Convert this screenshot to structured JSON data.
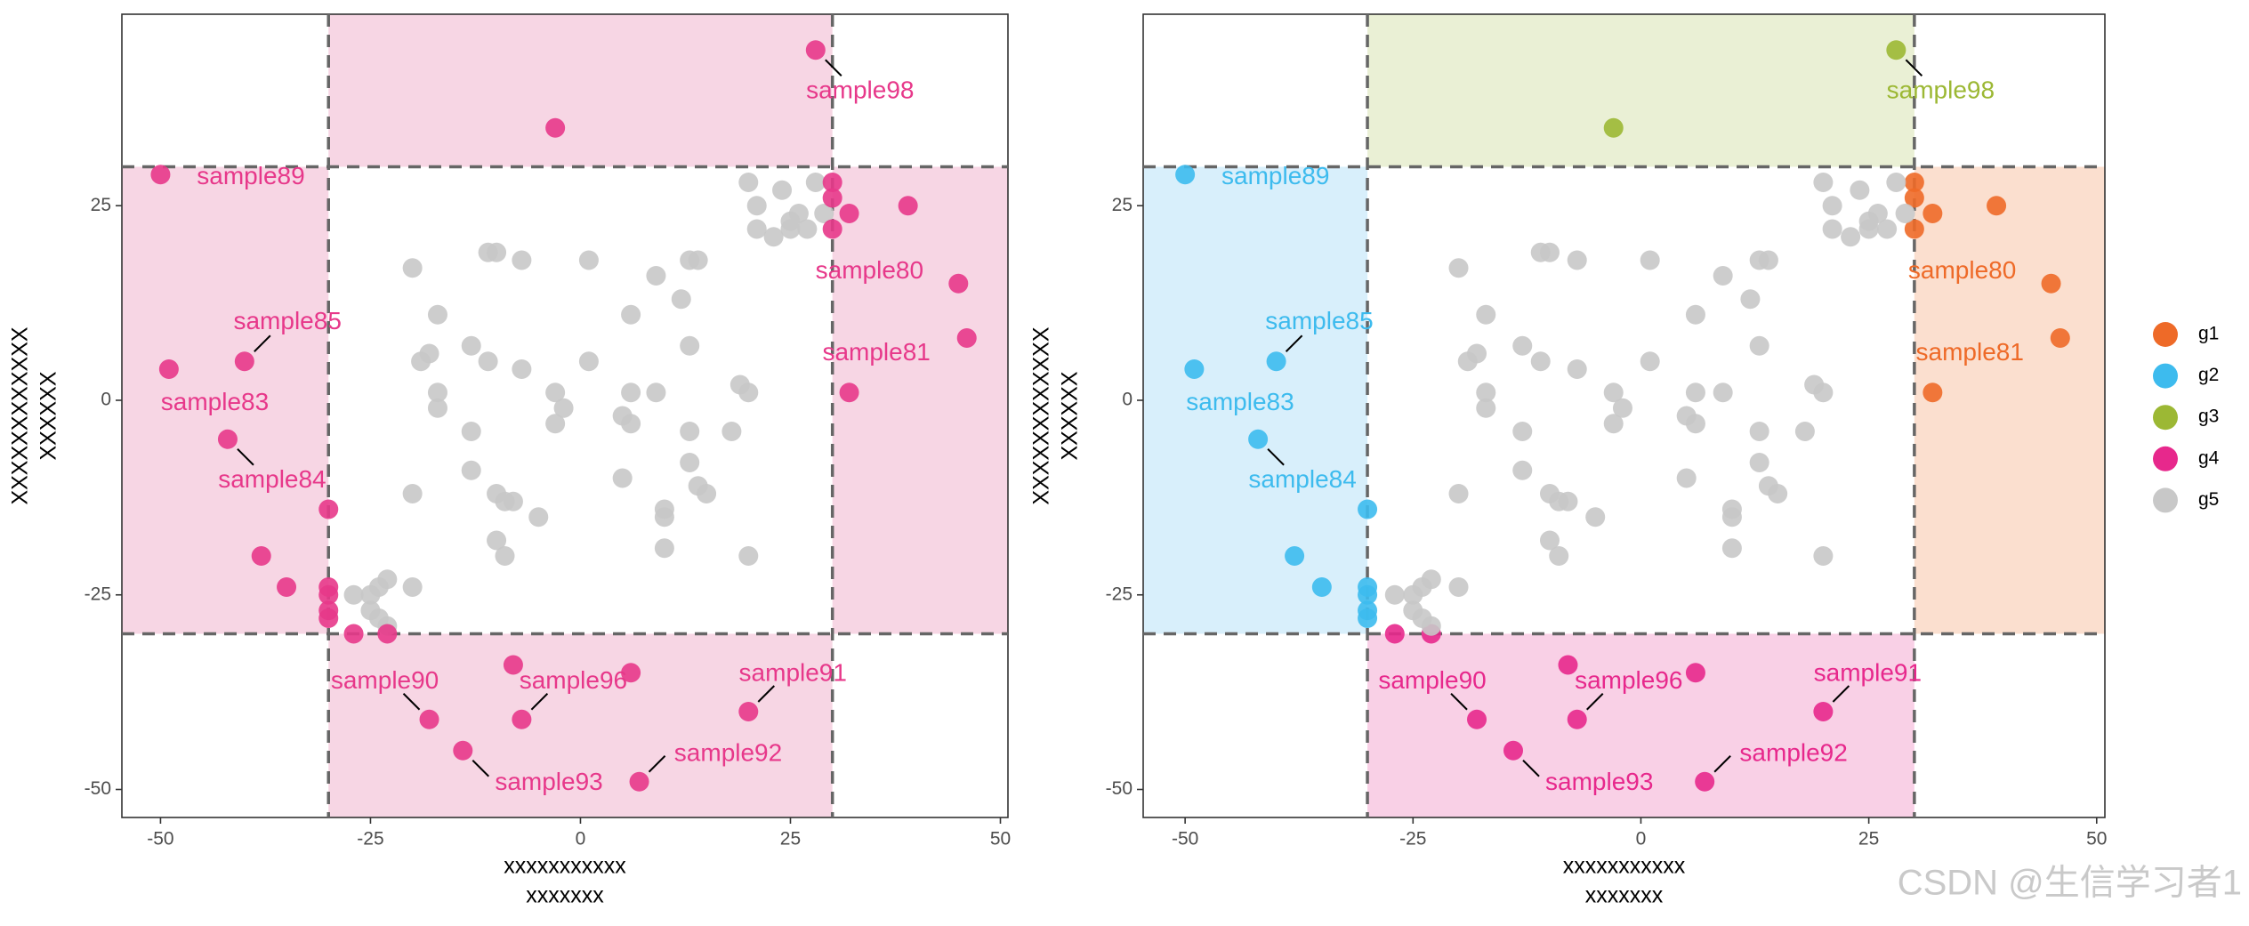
{
  "chart_data": [
    {
      "type": "scatter",
      "xlabel": [
        "xxxxxxxxxxx",
        "xxxxxxx"
      ],
      "ylabel": [
        "XXXXXXXXXXXX",
        "XXXXXX"
      ],
      "xlim": [
        -54.6,
        50.9
      ],
      "ylim": [
        -53.6,
        49.6
      ],
      "xticks": [
        -50,
        -25,
        0,
        25,
        50
      ],
      "yticks": [
        -50,
        -25,
        0,
        25
      ],
      "vlines": [
        -30,
        30
      ],
      "hlines": [
        -30,
        30
      ],
      "regions": [
        {
          "side": "top",
          "color": "#f7d6e4"
        },
        {
          "side": "left",
          "color": "#f7d6e4"
        },
        {
          "side": "right",
          "color": "#f7d6e4"
        },
        {
          "side": "bottom",
          "color": "#f7d6e4"
        }
      ],
      "series": [
        {
          "color": "#c8c8c8",
          "x": [
            20,
            24,
            28,
            21,
            26,
            25,
            29,
            21,
            23,
            27,
            25,
            -20,
            -11,
            -10,
            -7,
            1,
            13,
            14,
            9,
            6,
            -17,
            12,
            -13,
            13,
            -18,
            -19,
            -11,
            -7,
            1,
            -17,
            -17,
            -3,
            -2,
            6,
            9,
            19,
            20,
            -3,
            5,
            6,
            13,
            18,
            -13,
            13,
            -13,
            14,
            -20,
            -10,
            -9,
            -8,
            -5,
            5,
            10,
            10,
            15,
            -10,
            -9,
            10,
            20,
            -20,
            -23,
            -24,
            -25,
            -27,
            -25,
            -23,
            -24
          ],
          "values": [
            28,
            27,
            28,
            25,
            24,
            23,
            24,
            22,
            21,
            22,
            22,
            17,
            19,
            19,
            18,
            18,
            18,
            18,
            16,
            11,
            11,
            13,
            7,
            7,
            6,
            5,
            5,
            4,
            5,
            1,
            -1,
            1,
            -1,
            1,
            1,
            2,
            1,
            -3,
            -2,
            -3,
            -4,
            -4,
            -4,
            -8,
            -9,
            -11,
            -12,
            -12,
            -13,
            -13,
            -15,
            -10,
            -14,
            -15,
            -12,
            -18,
            -20,
            -19,
            -20,
            -24,
            -23,
            -24,
            -25,
            -25,
            -27,
            -29,
            -28
          ]
        },
        {
          "color": "#e7388a",
          "x": [
            30,
            30,
            32,
            30,
            39,
            45,
            46,
            32,
            -50,
            -49,
            -40,
            -42,
            -30,
            -38,
            -35,
            -30,
            -30,
            -30,
            -30,
            28,
            -3,
            -27,
            -23,
            -18,
            -14,
            -8,
            -7,
            6,
            7,
            20
          ],
          "values": [
            28,
            26,
            24,
            22,
            25,
            15,
            8,
            1,
            29,
            4,
            5,
            -5,
            -14,
            -20,
            -24,
            -24,
            -25,
            -27,
            -28,
            45,
            35,
            -30,
            -30,
            -41,
            -45,
            -34,
            -41,
            -35,
            -49,
            -40
          ],
          "labels": [
            null,
            null,
            null,
            null,
            null,
            "sample80",
            "sample81",
            null,
            "sample89",
            "sample83",
            "sample85",
            "sample84",
            null,
            null,
            null,
            null,
            null,
            null,
            null,
            "sample98",
            null,
            null,
            null,
            "sample90",
            "sample93",
            null,
            "sample96",
            null,
            "sample92",
            "sample91"
          ]
        }
      ]
    },
    {
      "type": "scatter",
      "xlabel": [
        "xxxxxxxxxxx",
        "xxxxxxx"
      ],
      "ylabel": [
        "XXXXXXXXXXXX",
        "XXXXXX"
      ],
      "xlim": [
        -54.6,
        50.9
      ],
      "ylim": [
        -53.6,
        49.6
      ],
      "xticks": [
        -50,
        -25,
        0,
        25,
        50
      ],
      "yticks": [
        -50,
        -25,
        0,
        25
      ],
      "vlines": [
        -30,
        30
      ],
      "hlines": [
        -30,
        30
      ],
      "regions": [
        {
          "side": "top",
          "color": "#eaf0d5"
        },
        {
          "side": "left",
          "color": "#d8effb"
        },
        {
          "side": "right",
          "color": "#fbdfcf"
        },
        {
          "side": "bottom",
          "color": "#f9d0e6"
        }
      ],
      "legend": "right",
      "series": [
        {
          "name": "g1",
          "color": "#ee6a28",
          "x": [
            30,
            30,
            32,
            30,
            39,
            45,
            46,
            32
          ],
          "values": [
            28,
            26,
            24,
            22,
            25,
            15,
            8,
            1
          ],
          "labels": [
            null,
            null,
            null,
            null,
            null,
            "sample80",
            "sample81",
            null
          ]
        },
        {
          "name": "g2",
          "color": "#3dbbee",
          "x": [
            -50,
            -49,
            -40,
            -42,
            -30,
            -38,
            -35,
            -30,
            -30,
            -30,
            -30
          ],
          "values": [
            29,
            4,
            5,
            -5,
            -14,
            -20,
            -24,
            -24,
            -25,
            -27,
            -28
          ],
          "labels": [
            "sample89",
            "sample83",
            "sample85",
            "sample84",
            null,
            null,
            null,
            null,
            null,
            null,
            null
          ]
        },
        {
          "name": "g3",
          "color": "#9cb834",
          "x": [
            28,
            -3
          ],
          "values": [
            45,
            35
          ],
          "labels": [
            "sample98",
            null
          ]
        },
        {
          "name": "g4",
          "color": "#e7288c",
          "x": [
            -27,
            -23,
            -18,
            -14,
            -8,
            -7,
            6,
            7,
            20
          ],
          "values": [
            -30,
            -30,
            -41,
            -45,
            -34,
            -41,
            -35,
            -49,
            -40
          ],
          "labels": [
            null,
            null,
            "sample90",
            "sample93",
            null,
            "sample96",
            null,
            "sample92",
            "sample91"
          ]
        },
        {
          "name": "g5",
          "color": "#c8c8c8",
          "x": [
            20,
            24,
            28,
            21,
            26,
            25,
            29,
            21,
            23,
            27,
            25,
            -20,
            -11,
            -10,
            -7,
            1,
            13,
            14,
            9,
            6,
            -17,
            12,
            -13,
            13,
            -18,
            -19,
            -11,
            -7,
            1,
            -17,
            -17,
            -3,
            -2,
            6,
            9,
            19,
            20,
            -3,
            5,
            6,
            13,
            18,
            -13,
            13,
            -13,
            14,
            -20,
            -10,
            -9,
            -8,
            -5,
            5,
            10,
            10,
            15,
            -10,
            -9,
            10,
            20,
            -20,
            -23,
            -24,
            -25,
            -27,
            -25,
            -23,
            -24
          ],
          "values": [
            28,
            27,
            28,
            25,
            24,
            23,
            24,
            22,
            21,
            22,
            22,
            17,
            19,
            19,
            18,
            18,
            18,
            18,
            16,
            11,
            11,
            13,
            7,
            7,
            6,
            5,
            5,
            4,
            5,
            1,
            -1,
            1,
            -1,
            1,
            1,
            2,
            1,
            -3,
            -2,
            -3,
            -4,
            -4,
            -4,
            -8,
            -9,
            -11,
            -12,
            -12,
            -13,
            -13,
            -15,
            -10,
            -14,
            -15,
            -12,
            -18,
            -20,
            -19,
            -20,
            -24,
            -23,
            -24,
            -25,
            -25,
            -27,
            -29,
            -28
          ]
        }
      ]
    }
  ],
  "watermark": "CSDN @生信学习者1"
}
